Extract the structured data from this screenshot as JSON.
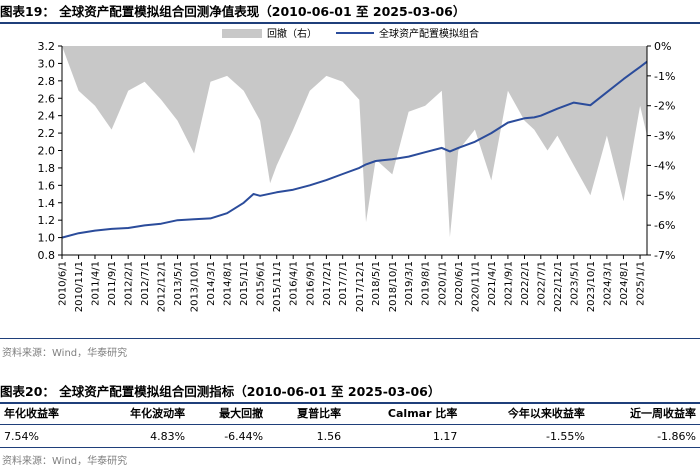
{
  "figure19": {
    "title": "图表19：   全球资产配置模拟组合回测净值表现（2010-06-01 至 2025-03-06）",
    "source": "资料来源：Wind，华泰研究"
  },
  "figure20": {
    "title": "图表20：   全球资产配置模拟组合回测指标（2010-06-01 至 2025-03-06）",
    "source": "资料来源：Wind，华泰研究",
    "headers": [
      "年化收益率",
      "年化波动率",
      "最大回撤",
      "夏普比率",
      "Calmar 比率",
      "今年以来收益率",
      "近一周收益率"
    ],
    "values": [
      "7.54%",
      "4.83%",
      "-6.44%",
      "1.56",
      "1.17",
      "-1.55%",
      "-1.86%"
    ]
  },
  "chart_data": {
    "type": "line",
    "x_tick_labels": [
      "2010/6/1",
      "2010/11/1",
      "2011/4/1",
      "2011/9/1",
      "2012/2/1",
      "2012/7/1",
      "2012/12/1",
      "2013/5/1",
      "2013/10/1",
      "2014/3/1",
      "2014/8/1",
      "2015/1/1",
      "2015/6/1",
      "2015/11/1",
      "2016/4/1",
      "2016/9/1",
      "2017/2/1",
      "2017/7/1",
      "2017/12/1",
      "2018/5/1",
      "2018/10/1",
      "2019/3/1",
      "2019/8/1",
      "2020/1/1",
      "2020/6/1",
      "2020/11/1",
      "2021/4/1",
      "2021/9/1",
      "2022/2/1",
      "2022/7/1",
      "2022/12/1",
      "2023/5/1",
      "2023/10/1",
      "2024/3/1",
      "2024/8/1",
      "2025/1/1"
    ],
    "y_left": {
      "min": 0.8,
      "max": 3.2,
      "ticks": [
        "0.8",
        "1.0",
        "1.2",
        "1.4",
        "1.6",
        "1.8",
        "2.0",
        "2.2",
        "2.4",
        "2.6",
        "2.8",
        "3.0",
        "3.2"
      ]
    },
    "y_right": {
      "min": -7,
      "max": 0,
      "ticks": [
        "0%",
        "-1%",
        "-2%",
        "-3%",
        "-4%",
        "-5%",
        "-6%",
        "-7%"
      ]
    },
    "legend": {
      "position": "top",
      "items": [
        "回撤（右）",
        "全球资产配置模拟组合"
      ]
    },
    "colors": {
      "nav": "#2b4c9b",
      "drawdown": "#c8c8c8"
    },
    "series": [
      {
        "name": "全球资产配置模拟组合",
        "axis": "left",
        "x": [
          "2010-06-01",
          "2010-11-01",
          "2011-04-01",
          "2011-09-01",
          "2012-02-01",
          "2012-07-01",
          "2012-12-01",
          "2013-05-01",
          "2013-10-01",
          "2014-03-01",
          "2014-08-01",
          "2015-01-01",
          "2015-04-01",
          "2015-06-01",
          "2015-11-01",
          "2016-04-01",
          "2016-09-01",
          "2017-02-01",
          "2017-07-01",
          "2017-12-01",
          "2018-02-01",
          "2018-05-01",
          "2018-10-01",
          "2019-03-01",
          "2019-08-01",
          "2020-01-01",
          "2020-03-15",
          "2020-06-01",
          "2020-11-01",
          "2021-04-01",
          "2021-09-01",
          "2022-02-01",
          "2022-05-01",
          "2022-07-01",
          "2022-12-01",
          "2023-05-01",
          "2023-10-01",
          "2024-03-01",
          "2024-08-01",
          "2025-01-01",
          "2025-03-06"
        ],
        "y": [
          1.0,
          1.05,
          1.08,
          1.1,
          1.11,
          1.14,
          1.16,
          1.2,
          1.21,
          1.22,
          1.28,
          1.4,
          1.5,
          1.48,
          1.52,
          1.55,
          1.6,
          1.66,
          1.73,
          1.8,
          1.84,
          1.88,
          1.9,
          1.93,
          1.98,
          2.03,
          1.99,
          2.03,
          2.1,
          2.2,
          2.32,
          2.37,
          2.38,
          2.4,
          2.48,
          2.55,
          2.52,
          2.67,
          2.82,
          2.96,
          3.02
        ]
      },
      {
        "name": "回撤（右）",
        "axis": "right",
        "type": "area",
        "x": [
          "2010-06-01",
          "2010-11-01",
          "2011-04-01",
          "2011-09-01",
          "2012-02-01",
          "2012-07-01",
          "2012-12-01",
          "2013-05-01",
          "2013-10-01",
          "2014-03-01",
          "2014-08-01",
          "2015-01-01",
          "2015-06-01",
          "2015-09-01",
          "2015-11-01",
          "2016-04-01",
          "2016-09-01",
          "2017-02-01",
          "2017-07-01",
          "2017-12-01",
          "2018-02-01",
          "2018-05-01",
          "2018-10-01",
          "2019-03-01",
          "2019-08-01",
          "2020-01-01",
          "2020-03-15",
          "2020-06-01",
          "2020-11-01",
          "2021-04-01",
          "2021-09-01",
          "2022-02-01",
          "2022-05-01",
          "2022-09-01",
          "2022-12-01",
          "2023-05-01",
          "2023-10-01",
          "2024-03-01",
          "2024-08-01",
          "2025-01-01",
          "2025-03-06"
        ],
        "y": [
          0,
          -1.5,
          -2.0,
          -2.8,
          -1.5,
          -1.2,
          -1.8,
          -2.5,
          -3.6,
          -1.2,
          -1.0,
          -1.5,
          -2.5,
          -4.6,
          -4.0,
          -2.8,
          -1.5,
          -1.0,
          -1.2,
          -1.8,
          -5.9,
          -3.8,
          -4.3,
          -2.2,
          -2.0,
          -1.5,
          -6.4,
          -3.5,
          -2.8,
          -4.5,
          -1.5,
          -2.5,
          -2.8,
          -3.5,
          -3.0,
          -4.0,
          -5.0,
          -3.0,
          -5.2,
          -2.0,
          -3.0
        ]
      }
    ]
  }
}
